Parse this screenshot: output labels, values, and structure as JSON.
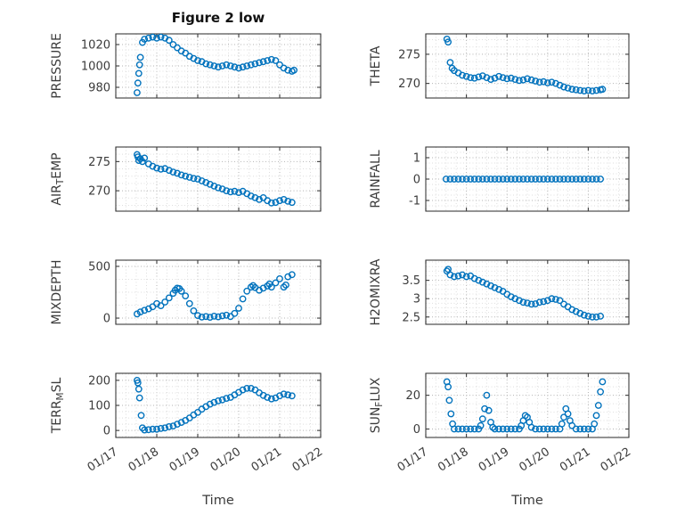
{
  "figure": {
    "title": "Figure 2 low",
    "xlabel": "Time",
    "marker_color": "#0072BD",
    "xlim": [
      0,
      5
    ],
    "x_tick_values": [
      0,
      1,
      2,
      3,
      4,
      5
    ],
    "x_ticks": [
      "01/17",
      "01/18",
      "01/19",
      "01/20",
      "01/21",
      "01/22"
    ]
  },
  "chart_data": [
    {
      "type": "scatter",
      "name": "PRESSURE",
      "ylabel_parts": [
        {
          "t": "PRESSURE"
        }
      ],
      "ylim": [
        970,
        1030
      ],
      "yticks": [
        980,
        1000,
        1020
      ],
      "x": [
        0.52,
        0.54,
        0.56,
        0.58,
        0.6,
        0.65,
        0.7,
        0.8,
        0.9,
        1.0,
        1.1,
        1.2,
        1.3,
        1.4,
        1.5,
        1.6,
        1.7,
        1.8,
        1.9,
        2.0,
        2.1,
        2.2,
        2.3,
        2.4,
        2.5,
        2.6,
        2.7,
        2.8,
        2.9,
        3.0,
        3.1,
        3.2,
        3.3,
        3.4,
        3.5,
        3.6,
        3.7,
        3.8,
        3.9,
        4.0,
        4.1,
        4.2,
        4.3,
        4.35
      ],
      "y": [
        975,
        984,
        993,
        1001,
        1008,
        1022,
        1025,
        1026,
        1027,
        1026,
        1027,
        1026,
        1024,
        1020,
        1017,
        1014,
        1012,
        1009,
        1007,
        1005,
        1004,
        1002,
        1001,
        1000,
        999,
        1000,
        1001,
        1000,
        999,
        998,
        999,
        1000,
        1001,
        1002,
        1003,
        1004,
        1005,
        1006,
        1005,
        1001,
        998,
        996,
        995,
        996
      ]
    },
    {
      "type": "scatter",
      "name": "THETA",
      "ylabel_parts": [
        {
          "t": "THETA"
        }
      ],
      "ylim": [
        267.5,
        278.5
      ],
      "yticks": [
        270,
        275
      ],
      "x": [
        0.52,
        0.55,
        0.6,
        0.65,
        0.7,
        0.8,
        0.9,
        1.0,
        1.1,
        1.2,
        1.3,
        1.4,
        1.5,
        1.6,
        1.7,
        1.8,
        1.9,
        2.0,
        2.1,
        2.2,
        2.3,
        2.4,
        2.5,
        2.6,
        2.7,
        2.8,
        2.9,
        3.0,
        3.1,
        3.2,
        3.3,
        3.4,
        3.5,
        3.6,
        3.7,
        3.8,
        3.9,
        4.0,
        4.1,
        4.2,
        4.3,
        4.35
      ],
      "y": [
        277.6,
        277.1,
        273.6,
        272.6,
        272.2,
        271.8,
        271.4,
        271.2,
        271.0,
        270.9,
        271.1,
        271.3,
        271.0,
        270.7,
        270.9,
        271.2,
        271.0,
        270.8,
        270.9,
        270.7,
        270.5,
        270.6,
        270.8,
        270.6,
        270.4,
        270.2,
        270.3,
        270.1,
        270.2,
        270.0,
        269.7,
        269.4,
        269.2,
        269.0,
        268.9,
        268.8,
        268.7,
        268.8,
        268.7,
        268.8,
        268.9,
        269.0
      ]
    },
    {
      "type": "scatter",
      "name": "AIR_TEMP",
      "ylabel_parts": [
        {
          "t": "AIR"
        },
        {
          "t": "T",
          "sub": true
        },
        {
          "t": "EMP"
        }
      ],
      "ylim": [
        266.5,
        277.5
      ],
      "yticks": [
        270,
        275
      ],
      "x": [
        0.52,
        0.54,
        0.56,
        0.6,
        0.65,
        0.7,
        0.8,
        0.9,
        1.0,
        1.1,
        1.2,
        1.3,
        1.4,
        1.5,
        1.6,
        1.7,
        1.8,
        1.9,
        2.0,
        2.1,
        2.2,
        2.3,
        2.4,
        2.5,
        2.6,
        2.7,
        2.8,
        2.9,
        3.0,
        3.1,
        3.2,
        3.3,
        3.4,
        3.5,
        3.6,
        3.7,
        3.8,
        3.9,
        4.0,
        4.1,
        4.2,
        4.3
      ],
      "y": [
        276.2,
        275.8,
        275.2,
        275.5,
        275.0,
        275.6,
        274.6,
        274.2,
        273.9,
        273.7,
        273.8,
        273.5,
        273.2,
        273.0,
        272.7,
        272.5,
        272.3,
        272.1,
        272.0,
        271.7,
        271.4,
        271.1,
        270.8,
        270.5,
        270.3,
        270.0,
        269.8,
        269.9,
        269.7,
        269.9,
        269.5,
        269.1,
        268.8,
        268.5,
        268.8,
        268.3,
        267.9,
        268.0,
        268.3,
        268.5,
        268.2,
        268.0
      ]
    },
    {
      "type": "scatter",
      "name": "RAINFALL",
      "ylabel_parts": [
        {
          "t": "RAINFALL"
        }
      ],
      "ylim": [
        -1.5,
        1.5
      ],
      "yticks": [
        -1,
        0,
        1
      ],
      "x": [
        0.5,
        0.6,
        0.7,
        0.8,
        0.9,
        1.0,
        1.1,
        1.2,
        1.3,
        1.4,
        1.5,
        1.6,
        1.7,
        1.8,
        1.9,
        2.0,
        2.1,
        2.2,
        2.3,
        2.4,
        2.5,
        2.6,
        2.7,
        2.8,
        2.9,
        3.0,
        3.1,
        3.2,
        3.3,
        3.4,
        3.5,
        3.6,
        3.7,
        3.8,
        3.9,
        4.0,
        4.1,
        4.2,
        4.3
      ],
      "y": [
        0,
        0,
        0,
        0,
        0,
        0,
        0,
        0,
        0,
        0,
        0,
        0,
        0,
        0,
        0,
        0,
        0,
        0,
        0,
        0,
        0,
        0,
        0,
        0,
        0,
        0,
        0,
        0,
        0,
        0,
        0,
        0,
        0,
        0,
        0,
        0,
        0,
        0,
        0
      ]
    },
    {
      "type": "scatter",
      "name": "MIXDEPTH",
      "ylabel_parts": [
        {
          "t": "MIXDEPTH"
        }
      ],
      "ylim": [
        -60,
        560
      ],
      "yticks": [
        0,
        500
      ],
      "x": [
        0.52,
        0.6,
        0.7,
        0.8,
        0.9,
        1.0,
        1.1,
        1.2,
        1.3,
        1.4,
        1.45,
        1.5,
        1.55,
        1.6,
        1.7,
        1.8,
        1.9,
        2.0,
        2.1,
        2.2,
        2.3,
        2.4,
        2.5,
        2.6,
        2.7,
        2.8,
        2.9,
        3.0,
        3.1,
        3.2,
        3.3,
        3.35,
        3.4,
        3.5,
        3.6,
        3.7,
        3.75,
        3.8,
        3.9,
        4.0,
        4.1,
        4.15,
        4.2,
        4.3
      ],
      "y": [
        40,
        60,
        75,
        90,
        110,
        140,
        120,
        155,
        195,
        240,
        270,
        290,
        285,
        260,
        215,
        140,
        70,
        25,
        10,
        15,
        8,
        18,
        12,
        22,
        28,
        15,
        45,
        95,
        185,
        260,
        300,
        315,
        295,
        270,
        290,
        310,
        330,
        300,
        340,
        380,
        300,
        320,
        400,
        420
      ]
    },
    {
      "type": "scatter",
      "name": "H2OMIXRA",
      "ylabel_parts": [
        {
          "t": "H2OMIXRA"
        }
      ],
      "ylim": [
        2.3,
        4.05
      ],
      "yticks": [
        2.5,
        3,
        3.5
      ],
      "x": [
        0.52,
        0.55,
        0.6,
        0.7,
        0.8,
        0.9,
        1.0,
        1.1,
        1.2,
        1.3,
        1.4,
        1.5,
        1.6,
        1.7,
        1.8,
        1.9,
        2.0,
        2.1,
        2.2,
        2.3,
        2.4,
        2.5,
        2.6,
        2.7,
        2.8,
        2.9,
        3.0,
        3.1,
        3.2,
        3.3,
        3.4,
        3.5,
        3.6,
        3.7,
        3.8,
        3.9,
        4.0,
        4.1,
        4.2,
        4.3
      ],
      "y": [
        3.75,
        3.8,
        3.65,
        3.6,
        3.62,
        3.65,
        3.6,
        3.62,
        3.55,
        3.5,
        3.45,
        3.4,
        3.35,
        3.3,
        3.25,
        3.2,
        3.12,
        3.05,
        3.0,
        2.95,
        2.9,
        2.88,
        2.85,
        2.86,
        2.9,
        2.92,
        2.95,
        3.0,
        2.98,
        2.95,
        2.85,
        2.78,
        2.7,
        2.65,
        2.6,
        2.55,
        2.52,
        2.5,
        2.5,
        2.52
      ]
    },
    {
      "type": "scatter",
      "name": "TERR_MSL",
      "ylabel_parts": [
        {
          "t": "TERR"
        },
        {
          "t": "M",
          "sub": true
        },
        {
          "t": "SL"
        }
      ],
      "ylim": [
        -28,
        228
      ],
      "yticks": [
        0,
        100,
        200
      ],
      "x": [
        0.52,
        0.54,
        0.56,
        0.58,
        0.62,
        0.65,
        0.7,
        0.8,
        0.9,
        1.0,
        1.1,
        1.2,
        1.3,
        1.4,
        1.5,
        1.6,
        1.7,
        1.8,
        1.9,
        2.0,
        2.1,
        2.2,
        2.3,
        2.4,
        2.5,
        2.6,
        2.7,
        2.8,
        2.9,
        3.0,
        3.1,
        3.2,
        3.3,
        3.4,
        3.5,
        3.6,
        3.7,
        3.8,
        3.9,
        4.0,
        4.1,
        4.2,
        4.3
      ],
      "y": [
        200,
        190,
        165,
        130,
        60,
        10,
        2,
        3,
        5,
        5,
        8,
        10,
        15,
        18,
        25,
        32,
        40,
        50,
        62,
        72,
        85,
        95,
        105,
        112,
        118,
        122,
        128,
        132,
        142,
        152,
        162,
        168,
        168,
        162,
        150,
        140,
        132,
        126,
        130,
        138,
        145,
        142,
        138
      ]
    },
    {
      "type": "scatter",
      "name": "SUN_FLUX",
      "ylabel_parts": [
        {
          "t": "SUN"
        },
        {
          "t": "F",
          "sub": true
        },
        {
          "t": "LUX"
        }
      ],
      "ylim": [
        -5,
        33
      ],
      "yticks": [
        0,
        20
      ],
      "x": [
        0.52,
        0.55,
        0.58,
        0.62,
        0.66,
        0.7,
        0.8,
        0.9,
        1.0,
        1.1,
        1.2,
        1.3,
        1.35,
        1.4,
        1.45,
        1.5,
        1.55,
        1.6,
        1.65,
        1.7,
        1.8,
        1.9,
        2.0,
        2.1,
        2.2,
        2.3,
        2.35,
        2.4,
        2.45,
        2.5,
        2.55,
        2.6,
        2.7,
        2.8,
        2.9,
        3.0,
        3.1,
        3.2,
        3.3,
        3.35,
        3.4,
        3.45,
        3.5,
        3.55,
        3.6,
        3.7,
        3.8,
        3.9,
        4.0,
        4.1,
        4.15,
        4.2,
        4.25,
        4.3,
        4.35
      ],
      "y": [
        28,
        25,
        17,
        9,
        3,
        0,
        0,
        0,
        0,
        0,
        0,
        0,
        2,
        6,
        12,
        20,
        11,
        4,
        1,
        0,
        0,
        0,
        0,
        0,
        0,
        0,
        2,
        5,
        8,
        7,
        4,
        1,
        0,
        0,
        0,
        0,
        0,
        0,
        0,
        3,
        7,
        12,
        9,
        5,
        2,
        0,
        0,
        0,
        0,
        0,
        3,
        8,
        14,
        22,
        28
      ]
    }
  ]
}
